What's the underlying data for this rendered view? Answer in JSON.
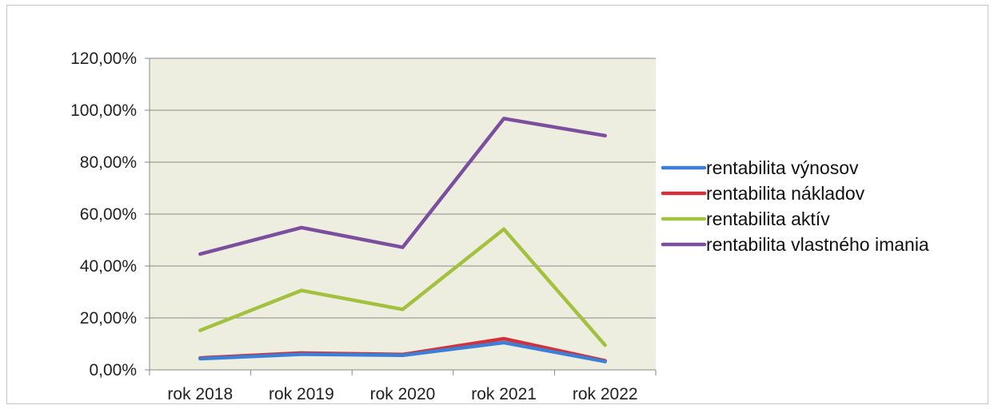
{
  "chart_data": {
    "type": "line",
    "categories": [
      "rok 2018",
      "rok 2019",
      "rok 2020",
      "rok 2021",
      "rok 2022"
    ],
    "ylim": [
      0,
      120
    ],
    "yticks": [
      "0,00%",
      "20,00%",
      "40,00%",
      "60,00%",
      "80,00%",
      "100,00%",
      "120,00%"
    ],
    "grid": true,
    "legend_position": "right",
    "plot_background": "#eeeee0",
    "series": [
      {
        "name": "rentabilita výnosov",
        "color": "#3d7fd6",
        "values": [
          4.3,
          6.0,
          5.6,
          10.5,
          3.2
        ]
      },
      {
        "name": "rentabilita nákladov",
        "color": "#d2303a",
        "values": [
          4.6,
          6.5,
          5.9,
          12.0,
          3.5
        ]
      },
      {
        "name": "rentabilita aktív",
        "color": "#a2c13e",
        "values": [
          15.2,
          30.6,
          23.3,
          54.2,
          9.5
        ]
      },
      {
        "name": "rentabilita vlastného imania",
        "color": "#7b4f9d",
        "values": [
          44.6,
          54.8,
          47.2,
          96.8,
          90.2
        ]
      }
    ]
  }
}
